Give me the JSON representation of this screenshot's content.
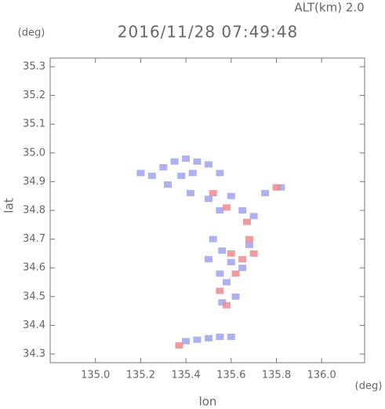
{
  "chart_data": {
    "type": "scatter",
    "title": "2016/11/28 07:49:48",
    "annotation": "ALT(km) 2.0",
    "y_unit": "(deg)",
    "x_unit": "(deg)",
    "xlabel": "lon",
    "ylabel": "lat",
    "xlim": [
      134.8,
      136.19
    ],
    "ylim": [
      34.27,
      35.33
    ],
    "xticks": [
      {
        "value": 135,
        "label": "135.0"
      },
      135.2,
      135.4,
      135.6,
      135.8,
      {
        "value": 136,
        "label": "136.0"
      }
    ],
    "yticks": [
      34.3,
      34.4,
      34.5,
      34.6,
      34.7,
      34.8,
      34.9,
      {
        "value": 35,
        "label": "35.0"
      },
      35.1,
      35.2,
      35.3
    ],
    "series": [
      {
        "color": "#9fa3ee",
        "x": [
          135.2,
          135.25,
          135.3,
          135.35,
          135.4,
          135.45,
          135.5,
          135.38,
          135.43,
          135.55,
          135.32,
          135.42,
          135.5,
          135.55,
          135.6,
          135.65,
          135.7,
          135.75,
          135.82,
          135.52,
          135.56,
          135.5,
          135.6,
          135.55,
          135.58,
          135.62,
          135.56,
          135.65,
          135.68,
          135.4,
          135.45,
          135.5,
          135.55,
          135.6
        ],
        "y": [
          34.93,
          34.92,
          34.95,
          34.97,
          34.98,
          34.97,
          34.96,
          34.92,
          34.93,
          34.93,
          34.89,
          34.86,
          34.84,
          34.8,
          34.85,
          34.8,
          34.78,
          34.86,
          34.88,
          34.7,
          34.66,
          34.63,
          34.62,
          34.58,
          34.55,
          34.5,
          34.48,
          34.6,
          34.68,
          34.345,
          34.35,
          34.355,
          34.36,
          34.36
        ]
      },
      {
        "color": "#f08a8e",
        "x": [
          135.52,
          135.58,
          135.67,
          135.8,
          135.6,
          135.65,
          135.7,
          135.62,
          135.55,
          135.58,
          135.37,
          135.68
        ],
        "y": [
          34.86,
          34.81,
          34.76,
          34.88,
          34.65,
          34.63,
          34.65,
          34.58,
          34.52,
          34.47,
          34.33,
          34.7
        ]
      }
    ]
  }
}
